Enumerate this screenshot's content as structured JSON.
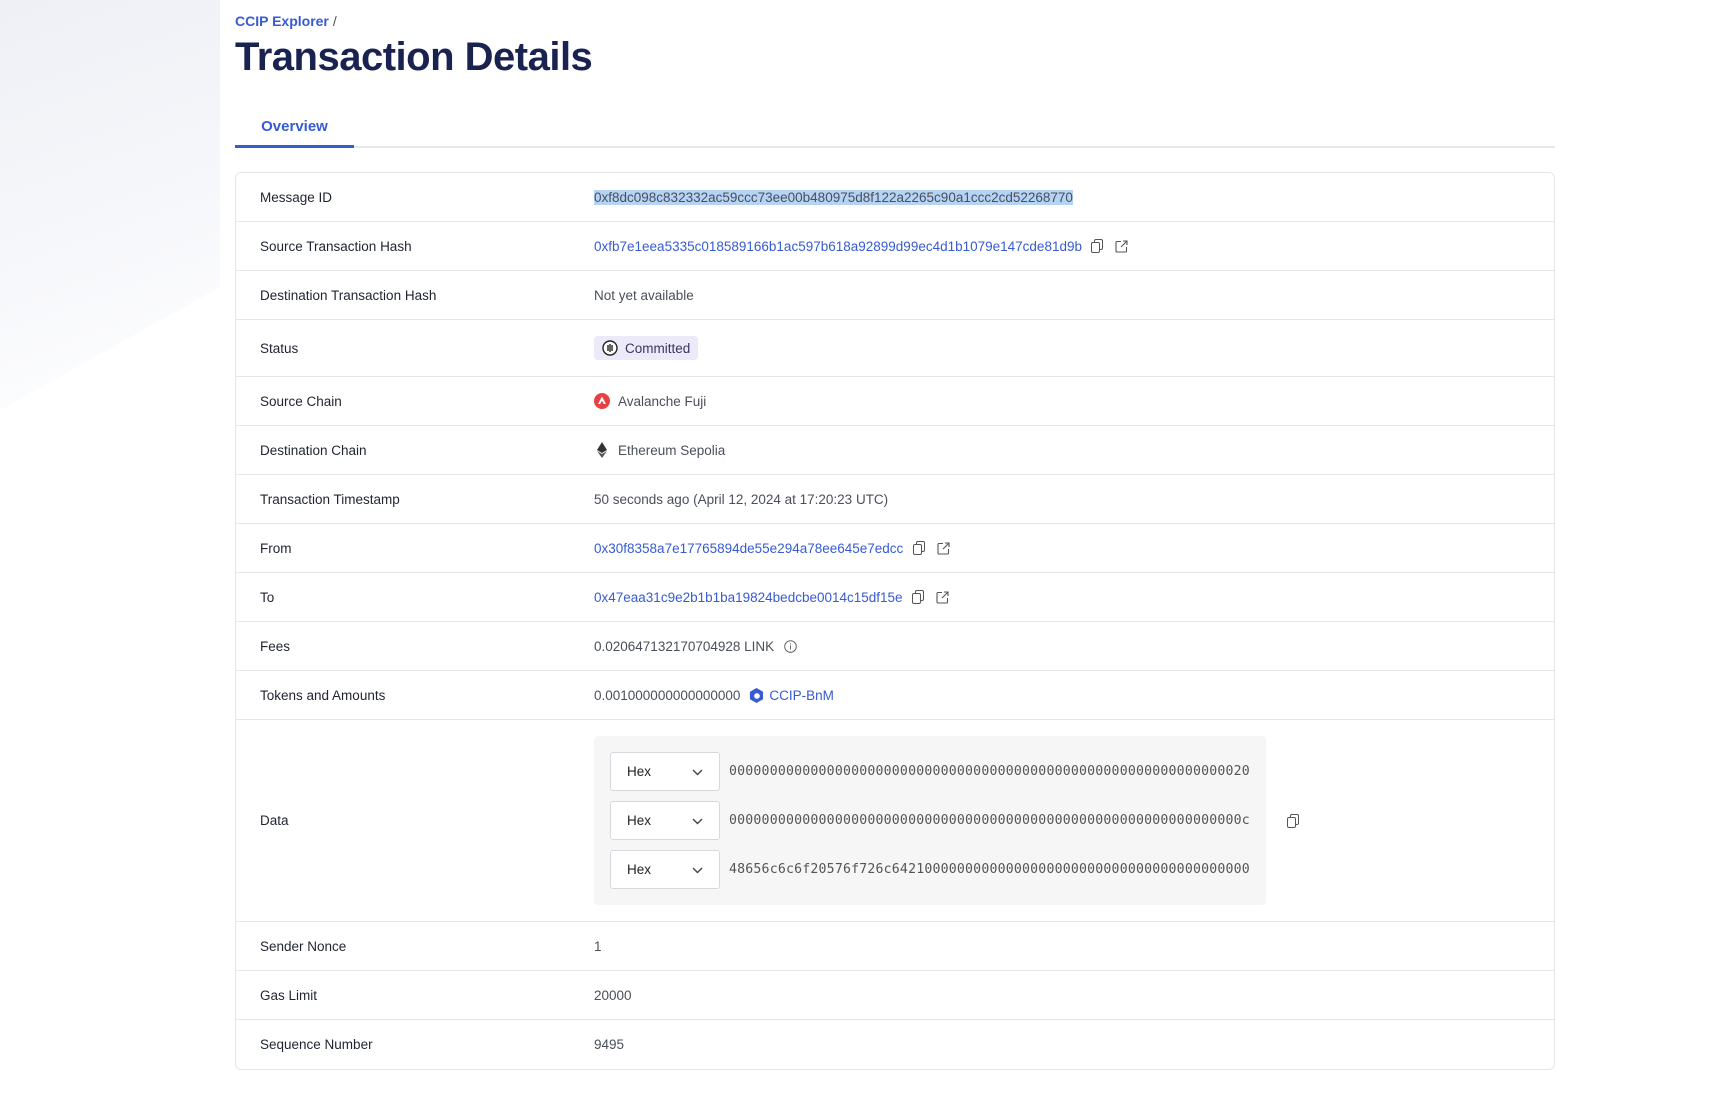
{
  "breadcrumb": {
    "root": "CCIP Explorer",
    "separator": "/"
  },
  "page_title": "Transaction Details",
  "tabs": [
    {
      "label": "Overview",
      "active": true
    }
  ],
  "colors": {
    "accent": "#375bd2",
    "title": "#1a2350",
    "status_bg": "#ece9f8",
    "avalanche": "#e84142"
  },
  "rows": {
    "message_id": {
      "label": "Message ID",
      "value": "0xf8dc098c832332ac59ccc73ee00b480975d8f122a2265c90a1ccc2cd52268770"
    },
    "source_tx": {
      "label": "Source Transaction Hash",
      "value": "0xfb7e1eea5335c018589166b1ac597b618a92899d99ec4d1b1079e147cde81d9b"
    },
    "dest_tx": {
      "label": "Destination Transaction Hash",
      "value": "Not yet available"
    },
    "status": {
      "label": "Status",
      "value": "Committed",
      "icon": "pause-circle-icon"
    },
    "source_chain": {
      "label": "Source Chain",
      "value": "Avalanche Fuji",
      "icon": "avalanche-icon"
    },
    "dest_chain": {
      "label": "Destination Chain",
      "value": "Ethereum Sepolia",
      "icon": "ethereum-icon"
    },
    "timestamp": {
      "label": "Transaction Timestamp",
      "value": "50 seconds ago (April 12, 2024 at 17:20:23 UTC)"
    },
    "from": {
      "label": "From",
      "value": "0x30f8358a7e17765894de55e294a78ee645e7edcc"
    },
    "to": {
      "label": "To",
      "value": "0x47eaa31c9e2b1b1ba19824bedcbe0014c15df15e"
    },
    "fees": {
      "label": "Fees",
      "value": "0.020647132170704928 LINK"
    },
    "tokens": {
      "label": "Tokens and Amounts",
      "amount": "0.001000000000000000",
      "token": "CCIP-BnM"
    },
    "data": {
      "label": "Data",
      "items": [
        {
          "format": "Hex",
          "value": "0000000000000000000000000000000000000000000000000000000000000020"
        },
        {
          "format": "Hex",
          "value": "000000000000000000000000000000000000000000000000000000000000000c"
        },
        {
          "format": "Hex",
          "value": "48656c6c6f20576f726c64210000000000000000000000000000000000000000"
        }
      ]
    },
    "nonce": {
      "label": "Sender Nonce",
      "value": "1"
    },
    "gas": {
      "label": "Gas Limit",
      "value": "20000"
    },
    "seq": {
      "label": "Sequence Number",
      "value": "9495"
    }
  }
}
